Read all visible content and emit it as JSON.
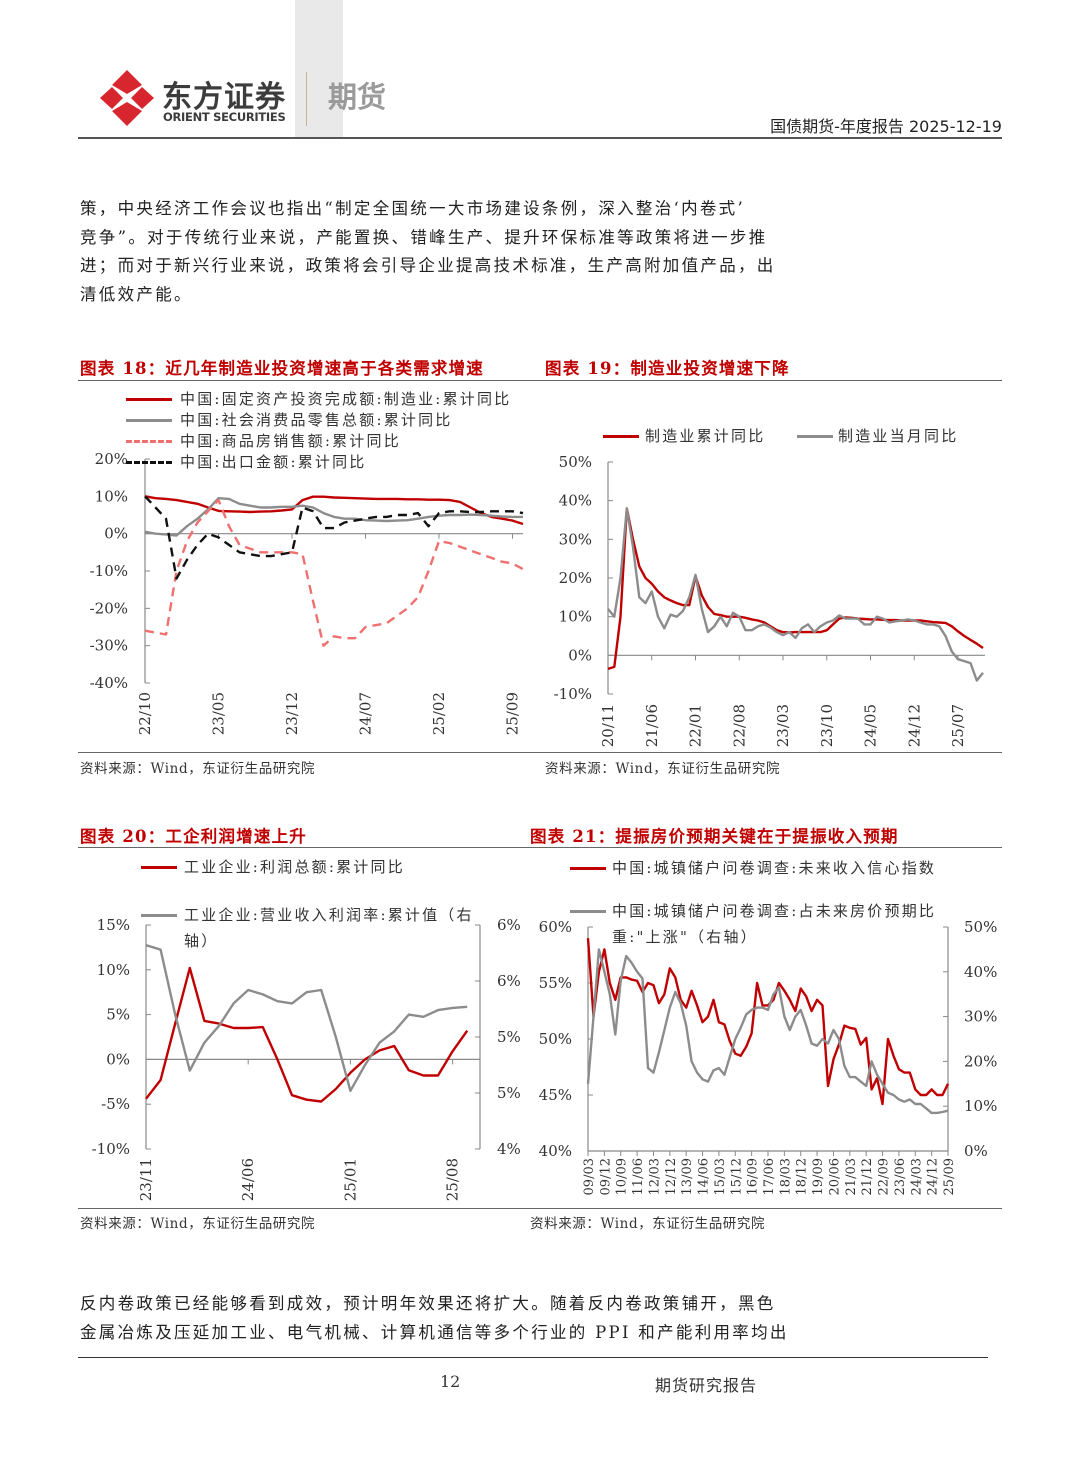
{
  "header": {
    "logo_cn": "东方证券",
    "logo_en": "ORIENT SECURITIES",
    "logo_division": "期货",
    "report_info": "国债期货-年度报告 2025-12-19",
    "brand_color": "#d7262d"
  },
  "intro_paragraph": [
    "策，中央经济工作会议也指出“制定全国统一大市场建设条例，深入整治‘内卷式’",
    "竞争”。对于传统行业来说，产能置换、错峰生产、提升环保标准等政策将进一步推",
    "进；而对于新兴行业来说，政策将会引导企业提高技术标准，生产高附加值产品，出",
    "清低效产能。"
  ],
  "figures": [
    {
      "title": "图表 18：近几年制造业投资增速高于各类需求增速",
      "source": "资料来源：Wind，东证衍生品研究院"
    },
    {
      "title": "图表 19：制造业投资增速下降",
      "source": "资料来源：Wind，东证衍生品研究院"
    },
    {
      "title": "图表 20：工企利润增速上升",
      "source": "资料来源：Wind，东证衍生品研究院"
    },
    {
      "title": "图表 21：提振房价预期关键在于提振收入预期",
      "source": "资料来源：Wind，东证衍生品研究院"
    }
  ],
  "chart_data": [
    {
      "type": "line",
      "frequency": "monthly",
      "x_start": "22/10",
      "x_ticks": [
        "22/10",
        "23/05",
        "23/12",
        "24/07",
        "25/02",
        "25/09"
      ],
      "y_ticks": [
        "20%",
        "10%",
        "0%",
        "-10%",
        "-20%",
        "-30%",
        "-40%"
      ],
      "ylim": [
        -40,
        20
      ],
      "unit": "%",
      "legend_position": "top-left",
      "series": [
        {
          "name": "中国:固定资产投资完成额:制造业:累计同比",
          "color": "#c00000",
          "dash": "solid",
          "values": [
            10,
            9.5,
            9.3,
            9,
            8.5,
            8,
            7,
            6.1,
            6,
            5.9,
            5.8,
            5.9,
            6,
            6.2,
            6.5,
            9,
            9.9,
            9.9,
            9.7,
            9.6,
            9.5,
            9.4,
            9.3,
            9.3,
            9.3,
            9.2,
            9.2,
            9.1,
            9.1,
            9,
            8.5,
            7,
            5.5,
            4.5,
            4,
            3.5,
            2.6
          ]
        },
        {
          "name": "中国:社会消费品零售总额:累计同比",
          "color": "#8c8c8c",
          "dash": "solid",
          "values": [
            0.5,
            0,
            -0.2,
            -0.5,
            2,
            4,
            6.5,
            9.5,
            9.3,
            8,
            7.5,
            7,
            7,
            7.2,
            7.2,
            7.5,
            7,
            5.5,
            4.5,
            4,
            4,
            3.6,
            3.5,
            3.4,
            3.5,
            3.6,
            4,
            4.5,
            4.8,
            5,
            5,
            5.1,
            5,
            4.8,
            4.6,
            4.5,
            4.5
          ]
        },
        {
          "name": "中国:商品房销售额:累计同比",
          "color": "#f07070",
          "dash": "dashed",
          "values": [
            -26,
            -26.5,
            -27,
            -10,
            -2,
            3,
            6,
            9,
            2,
            -3,
            -4,
            -5,
            -5,
            -5,
            -5,
            -5.5,
            -18,
            -30,
            -27.5,
            -28,
            -28,
            -25,
            -24.5,
            -24,
            -22,
            -20,
            -17,
            -10,
            -2,
            -2.5,
            -3.5,
            -4.5,
            -5.5,
            -6.5,
            -7.5,
            -8,
            -9.5
          ]
        },
        {
          "name": "中国:出口金额:累计同比",
          "color": "#111111",
          "dash": "dashed",
          "values": [
            10,
            7,
            4,
            -12,
            -7,
            -3,
            0,
            -1,
            -3,
            -5,
            -5.5,
            -6,
            -6,
            -5.5,
            -5,
            7,
            6,
            1.5,
            1.5,
            3,
            3.5,
            4,
            4.5,
            4.5,
            5,
            5,
            5.5,
            2,
            5.5,
            6,
            6,
            5.8,
            5.8,
            6,
            6,
            6,
            5.5
          ]
        }
      ]
    },
    {
      "type": "line",
      "frequency": "monthly",
      "x_start": "20/11",
      "x_ticks": [
        "20/11",
        "21/06",
        "22/01",
        "22/08",
        "23/03",
        "23/10",
        "24/05",
        "24/12",
        "25/07"
      ],
      "y_ticks": [
        "50%",
        "40%",
        "30%",
        "20%",
        "10%",
        "0%",
        "-10%"
      ],
      "ylim": [
        -10,
        50
      ],
      "unit": "%",
      "legend_position": "top",
      "series": [
        {
          "name": "制造业累计同比",
          "color": "#c00000",
          "dash": "solid",
          "values": [
            -3.5,
            -3,
            10,
            38,
            30,
            23,
            20,
            18.5,
            16.5,
            15,
            14.2,
            13.5,
            13,
            13,
            20.5,
            15.5,
            12.5,
            10.7,
            10.4,
            10,
            10,
            10,
            9.7,
            9.3,
            9,
            8.5,
            7.5,
            6.5,
            6,
            5.9,
            6,
            6,
            6,
            6,
            6,
            6.5,
            8,
            9.5,
            9.8,
            9.7,
            9.5,
            9.4,
            9.3,
            9.3,
            9.2,
            9.1,
            9.1,
            9,
            9,
            9,
            9,
            8.8,
            8.6,
            8.5,
            8.4,
            7.5,
            6.2,
            5,
            4,
            3,
            1.9
          ]
        },
        {
          "name": "制造业当月同比",
          "color": "#8c8c8c",
          "dash": "solid",
          "values": [
            12,
            10,
            20,
            38,
            28,
            15,
            13.5,
            16.5,
            10,
            7,
            10.5,
            10,
            11.5,
            15,
            20.8,
            12,
            6,
            7.5,
            10,
            7.5,
            11,
            10,
            6.5,
            6.5,
            7.5,
            8,
            7.2,
            6,
            5.2,
            6,
            4.5,
            7,
            8,
            6,
            7.5,
            8.5,
            9,
            10.3,
            9.5,
            9.5,
            9.5,
            8,
            8,
            10,
            9.5,
            8.5,
            8.8,
            9,
            9.3,
            9,
            8.5,
            8,
            8,
            7.5,
            5,
            1,
            -1,
            -1.5,
            -2,
            -6.5,
            -4.5
          ]
        }
      ]
    },
    {
      "type": "line",
      "frequency": "monthly",
      "x_start": "23/11",
      "x_ticks": [
        "23/11",
        "24/06",
        "25/01",
        "25/08"
      ],
      "y_ticks": [
        "15%",
        "10%",
        "5%",
        "0%",
        "-5%",
        "-10%"
      ],
      "y2_ticks": [
        "6%",
        "6%",
        "5%",
        "5%",
        "4%"
      ],
      "ylim": [
        -10,
        15
      ],
      "y2lim": [
        4,
        6
      ],
      "unit": "%",
      "legend_position": "top",
      "series": [
        {
          "name": "工业企业:利润总额:累计同比",
          "color": "#c00000",
          "dash": "solid",
          "axis": "left",
          "values": [
            -4.4,
            -2.3,
            4,
            10.2,
            4.3,
            4,
            3.5,
            3.5,
            3.6,
            0,
            -4,
            -4.5,
            -4.7,
            -3.3,
            -1.5,
            0,
            1,
            1.5,
            -1.2,
            -1.8,
            -1.8,
            0.9,
            3.2
          ]
        },
        {
          "name": "工业企业:营业收入利润率:累计值（右轴）",
          "color": "#8c8c8c",
          "dash": "solid",
          "axis": "right",
          "values": [
            5.82,
            5.78,
            5.2,
            4.7,
            4.95,
            5.1,
            5.3,
            5.42,
            5.38,
            5.32,
            5.3,
            5.4,
            5.42,
            5.0,
            4.52,
            4.75,
            4.95,
            5.05,
            5.2,
            5.18,
            5.24,
            5.26,
            5.27
          ]
        }
      ]
    },
    {
      "type": "line",
      "frequency": "quarterly",
      "x_start": "09/03",
      "x_ticks": [
        "09/03",
        "09/12",
        "10/09",
        "11/06",
        "12/03",
        "12/12",
        "13/09",
        "14/06",
        "15/03",
        "15/12",
        "16/09",
        "17/06",
        "18/03",
        "18/12",
        "19/09",
        "20/06",
        "21/03",
        "21/12",
        "22/09",
        "23/06",
        "24/03",
        "24/12",
        "25/09"
      ],
      "y_ticks": [
        "60%",
        "55%",
        "50%",
        "45%",
        "40%"
      ],
      "y2_ticks": [
        "50%",
        "40%",
        "30%",
        "20%",
        "10%",
        "0%"
      ],
      "ylim": [
        40,
        60
      ],
      "y2lim": [
        0,
        50
      ],
      "unit": "%",
      "legend_position": "top",
      "series": [
        {
          "name": "中国:城镇储户问卷调查:未来收入信心指数",
          "color": "#c00000",
          "dash": "solid",
          "axis": "left",
          "values": [
            59,
            52,
            56,
            58,
            55,
            53.5,
            55.5,
            55.5,
            55.3,
            55.2,
            54.2,
            55,
            54.8,
            53.2,
            54,
            56.3,
            55.5,
            53.5,
            52.8,
            54.3,
            53,
            51.5,
            52,
            53.5,
            51.5,
            51.3,
            49.8,
            48.7,
            48.5,
            49.3,
            50.5,
            55,
            53,
            53,
            53.5,
            55,
            54.3,
            53.5,
            52.5,
            54.5,
            53.8,
            52.5,
            53.5,
            53,
            45.8,
            48.2,
            49.5,
            51.2,
            51,
            50.9,
            49.5,
            50.1,
            45.5,
            46.5,
            44.2,
            50,
            48.5,
            47.3,
            47,
            47,
            45.5,
            45,
            45,
            45.5,
            45,
            45,
            46
          ]
        },
        {
          "name": "中国:城镇储户问卷调查:占未来房价预期比重:\"上涨\"（右轴）",
          "color": "#8c8c8c",
          "dash": "solid",
          "axis": "right",
          "values": [
            15,
            30,
            45,
            40,
            35,
            26,
            38,
            43.5,
            42,
            40,
            38.5,
            18.5,
            17.5,
            22,
            27,
            32,
            35.5,
            33,
            28,
            20,
            17.5,
            16,
            15.5,
            18,
            18.5,
            17,
            21,
            25,
            27.5,
            30.5,
            31.5,
            32,
            32,
            31.5,
            35,
            36.5,
            30,
            27,
            30,
            31.5,
            28,
            24,
            23.5,
            25,
            24,
            27,
            25,
            19,
            16.5,
            16.5,
            15.5,
            14.5,
            20,
            17,
            15,
            13,
            12.5,
            11.5,
            11,
            11.5,
            10.5,
            10.5,
            9.5,
            8.5,
            8.5,
            8.7,
            9
          ]
        }
      ]
    }
  ],
  "closing_paragraph": [
    "反内卷政策已经能够看到成效，预计明年效果还将扩大。随着反内卷政策铺开，黑色",
    "金属冶炼及压延加工业、电气机械、计算机通信等多个行业的 PPI 和产能利用率均出"
  ],
  "footer": {
    "page_number": "12",
    "label": "期货研究报告"
  }
}
